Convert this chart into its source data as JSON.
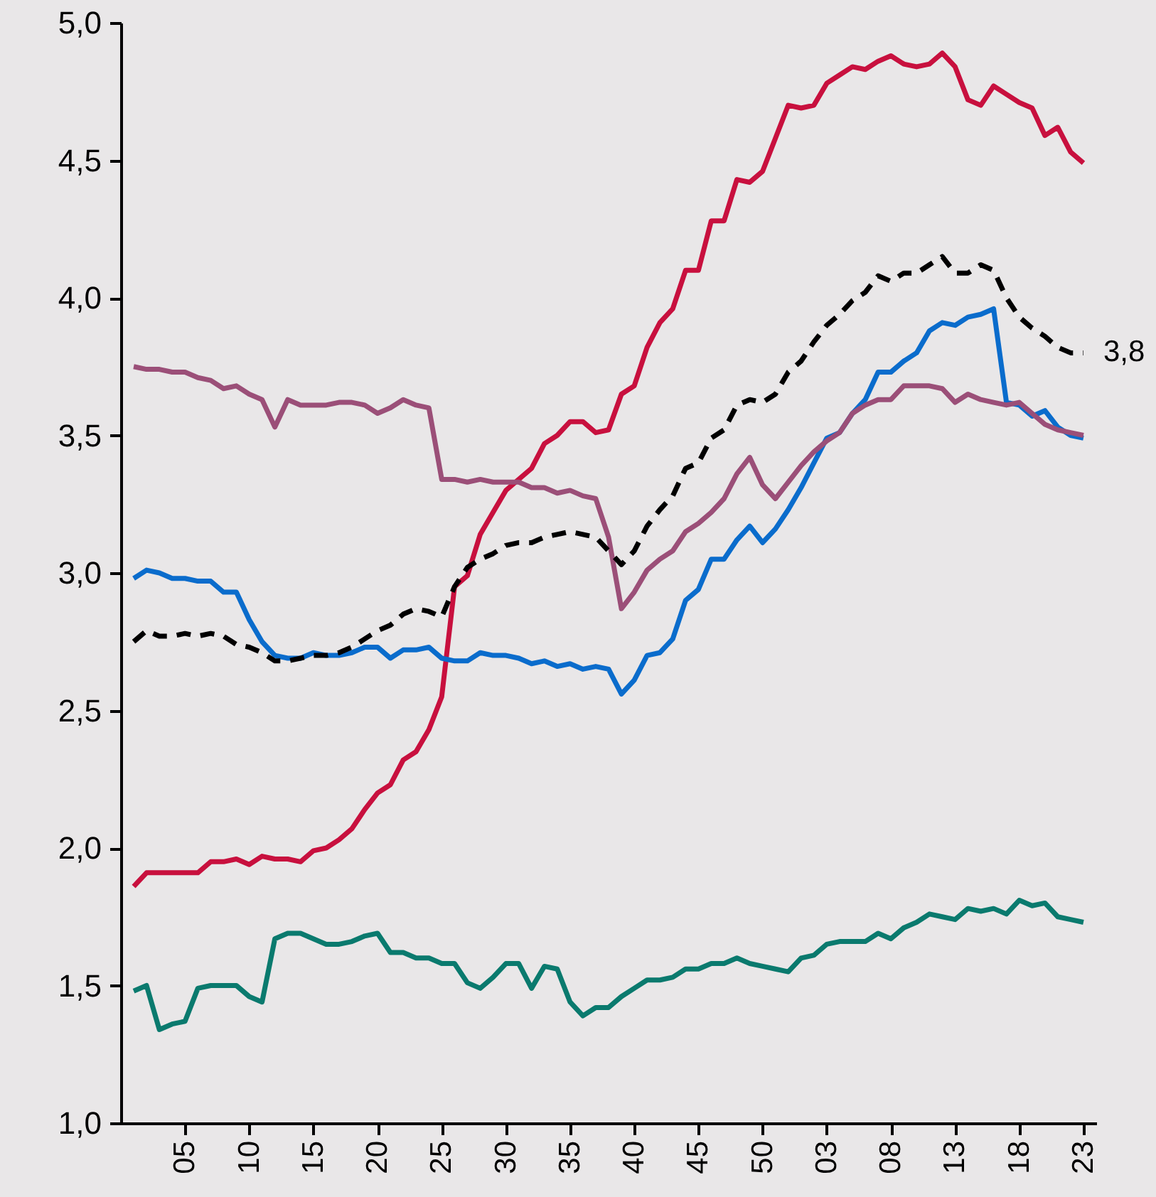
{
  "chart_data": {
    "type": "line",
    "categories": [
      null,
      null,
      null,
      null,
      "05",
      null,
      null,
      null,
      null,
      "10",
      null,
      null,
      null,
      null,
      "15",
      null,
      null,
      null,
      null,
      "20",
      null,
      null,
      null,
      null,
      "25",
      null,
      null,
      null,
      null,
      "30",
      null,
      null,
      null,
      null,
      "35",
      null,
      null,
      null,
      null,
      "40",
      null,
      null,
      null,
      null,
      "45",
      null,
      null,
      null,
      null,
      "50",
      null,
      null,
      null,
      null,
      "03",
      null,
      null,
      null,
      null,
      "08",
      null,
      null,
      null,
      null,
      "13",
      null,
      null,
      null,
      null,
      "18",
      null,
      null,
      null,
      null,
      "23"
    ],
    "ylim": [
      1,
      5
    ],
    "yticks": [
      {
        "value": 1,
        "label": "1,0"
      },
      {
        "value": 1.5,
        "label": "1,5"
      },
      {
        "value": 2,
        "label": "2,0"
      },
      {
        "value": 2.5,
        "label": "2,5"
      },
      {
        "value": 3,
        "label": "3,0"
      },
      {
        "value": 3.5,
        "label": "3,5"
      },
      {
        "value": 4,
        "label": "4,0"
      },
      {
        "value": 4.5,
        "label": "4,5"
      },
      {
        "value": 5,
        "label": "5,0"
      }
    ],
    "series": [
      {
        "color": "#c8103e",
        "values": [
          1.86,
          1.91,
          1.91,
          1.91,
          1.91,
          1.91,
          1.95,
          1.95,
          1.96,
          1.94,
          1.97,
          1.96,
          1.96,
          1.95,
          1.99,
          2.0,
          2.03,
          2.07,
          2.14,
          2.2,
          2.23,
          2.32,
          2.35,
          2.43,
          2.55,
          2.95,
          2.99,
          3.14,
          3.22,
          3.3,
          3.34,
          3.38,
          3.47,
          3.5,
          3.55,
          3.55,
          3.51,
          3.52,
          3.65,
          3.68,
          3.82,
          3.91,
          3.96,
          4.1,
          4.1,
          4.28,
          4.28,
          4.43,
          4.42,
          4.46,
          4.58,
          4.7,
          4.69,
          4.7,
          4.78,
          4.81,
          4.84,
          4.83,
          4.86,
          4.88,
          4.85,
          4.84,
          4.85,
          4.89,
          4.84,
          4.72,
          4.7,
          4.77,
          4.74,
          4.71,
          4.69,
          4.59,
          4.62,
          4.53,
          4.49
        ]
      },
      {
        "color": "#0a6ccc",
        "values": [
          2.98,
          3.01,
          3.0,
          2.98,
          2.98,
          2.97,
          2.97,
          2.93,
          2.93,
          2.83,
          2.75,
          2.7,
          2.69,
          2.69,
          2.71,
          2.7,
          2.7,
          2.71,
          2.73,
          2.73,
          2.69,
          2.72,
          2.72,
          2.73,
          2.69,
          2.68,
          2.68,
          2.71,
          2.7,
          2.7,
          2.69,
          2.67,
          2.68,
          2.66,
          2.67,
          2.65,
          2.66,
          2.65,
          2.56,
          2.61,
          2.7,
          2.71,
          2.76,
          2.9,
          2.94,
          3.05,
          3.05,
          3.12,
          3.17,
          3.11,
          3.16,
          3.23,
          3.31,
          3.4,
          3.49,
          3.51,
          3.58,
          3.63,
          3.73,
          3.73,
          3.77,
          3.8,
          3.88,
          3.91,
          3.9,
          3.93,
          3.94,
          3.96,
          3.62,
          3.61,
          3.57,
          3.59,
          3.53,
          3.5,
          3.49
        ]
      },
      {
        "color": "#9b4f78",
        "values": [
          3.75,
          3.74,
          3.74,
          3.73,
          3.73,
          3.71,
          3.7,
          3.67,
          3.68,
          3.65,
          3.63,
          3.53,
          3.63,
          3.61,
          3.61,
          3.61,
          3.62,
          3.62,
          3.61,
          3.58,
          3.6,
          3.63,
          3.61,
          3.6,
          3.34,
          3.34,
          3.33,
          3.34,
          3.33,
          3.33,
          3.33,
          3.31,
          3.31,
          3.29,
          3.3,
          3.28,
          3.27,
          3.13,
          2.87,
          2.93,
          3.01,
          3.05,
          3.08,
          3.15,
          3.18,
          3.22,
          3.27,
          3.36,
          3.42,
          3.32,
          3.27,
          3.33,
          3.39,
          3.44,
          3.48,
          3.51,
          3.58,
          3.61,
          3.63,
          3.63,
          3.68,
          3.68,
          3.68,
          3.67,
          3.62,
          3.65,
          3.63,
          3.62,
          3.61,
          3.62,
          3.58,
          3.54,
          3.52,
          3.51,
          3.5
        ]
      },
      {
        "color": "#0a7a6e",
        "values": [
          1.48,
          1.5,
          1.34,
          1.36,
          1.37,
          1.49,
          1.5,
          1.5,
          1.5,
          1.46,
          1.44,
          1.67,
          1.69,
          1.69,
          1.67,
          1.65,
          1.65,
          1.66,
          1.68,
          1.69,
          1.62,
          1.62,
          1.6,
          1.6,
          1.58,
          1.58,
          1.51,
          1.49,
          1.53,
          1.58,
          1.58,
          1.49,
          1.57,
          1.56,
          1.44,
          1.39,
          1.42,
          1.42,
          1.46,
          1.49,
          1.52,
          1.52,
          1.53,
          1.56,
          1.56,
          1.58,
          1.58,
          1.6,
          1.58,
          1.57,
          1.56,
          1.55,
          1.6,
          1.61,
          1.65,
          1.66,
          1.66,
          1.66,
          1.69,
          1.67,
          1.71,
          1.73,
          1.76,
          1.75,
          1.74,
          1.78,
          1.77,
          1.78,
          1.76,
          1.81,
          1.79,
          1.8,
          1.75,
          1.74,
          1.73
        ]
      },
      {
        "color": "#000000",
        "line_style": "dashed",
        "values": [
          2.75,
          2.79,
          2.77,
          2.77,
          2.78,
          2.77,
          2.78,
          2.77,
          2.74,
          2.73,
          2.71,
          2.68,
          2.68,
          2.69,
          2.7,
          2.7,
          2.71,
          2.73,
          2.76,
          2.79,
          2.81,
          2.85,
          2.87,
          2.86,
          2.84,
          2.95,
          3.02,
          3.05,
          3.07,
          3.1,
          3.11,
          3.11,
          3.13,
          3.14,
          3.15,
          3.14,
          3.13,
          3.08,
          3.03,
          3.08,
          3.17,
          3.23,
          3.28,
          3.38,
          3.4,
          3.49,
          3.52,
          3.61,
          3.63,
          3.62,
          3.65,
          3.73,
          3.77,
          3.84,
          3.9,
          3.94,
          3.99,
          4.02,
          4.08,
          4.06,
          4.09,
          4.09,
          4.12,
          4.15,
          4.09,
          4.09,
          4.12,
          4.1,
          4.0,
          3.93,
          3.89,
          3.86,
          3.82,
          3.8,
          3.8
        ]
      }
    ],
    "annotations": [
      {
        "text": "3,8",
        "x": "23",
        "y": 3.8
      }
    ]
  }
}
